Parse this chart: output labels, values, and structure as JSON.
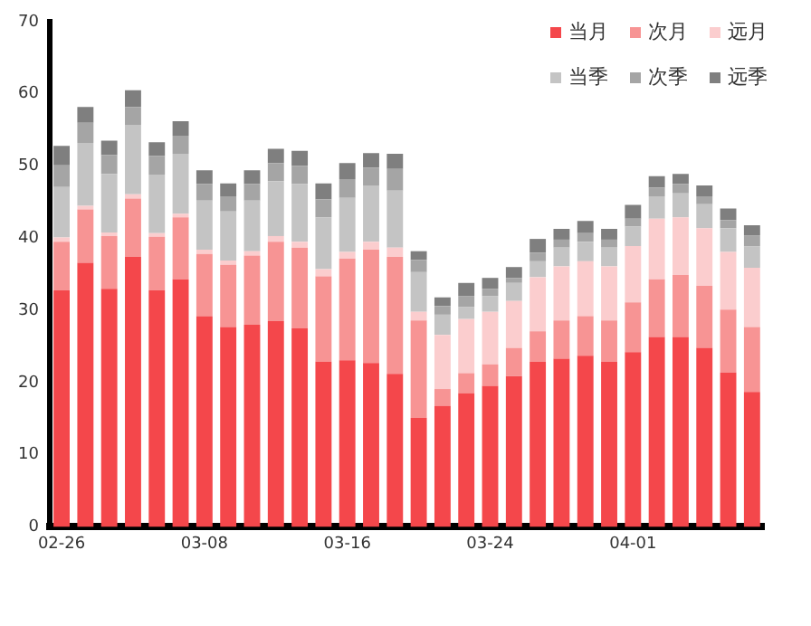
{
  "chart_data": {
    "type": "bar",
    "stacked": true,
    "categories": [
      "02-26",
      null,
      null,
      null,
      null,
      null,
      "03-08",
      null,
      null,
      null,
      null,
      null,
      "03-16",
      null,
      null,
      null,
      null,
      null,
      "03-24",
      null,
      null,
      null,
      null,
      null,
      "04-01",
      null,
      null,
      null,
      null,
      null
    ],
    "series": [
      {
        "name": "当月",
        "color": "#f4474b",
        "values": [
          32.8,
          36.6,
          33.0,
          37.4,
          32.8,
          34.3,
          29.2,
          27.7,
          28.0,
          28.5,
          27.5,
          22.9,
          23.1,
          22.7,
          21.2,
          15.1,
          16.8,
          18.5,
          19.5,
          20.9,
          22.9,
          23.3,
          23.7,
          22.9,
          24.2,
          26.3,
          26.3,
          24.8,
          21.4,
          18.7
        ]
      },
      {
        "name": "次月",
        "color": "#f79494",
        "values": [
          6.7,
          7.4,
          7.3,
          8.1,
          7.4,
          8.6,
          8.6,
          8.6,
          9.6,
          11.0,
          11.2,
          11.8,
          14.1,
          15.7,
          16.2,
          13.5,
          2.3,
          2.8,
          3.0,
          3.9,
          4.2,
          5.3,
          5.5,
          5.7,
          6.9,
          8.0,
          8.6,
          8.6,
          8.7,
          9.0
        ]
      },
      {
        "name": "远月",
        "color": "#fbcdce",
        "values": [
          0.6,
          0.5,
          0.5,
          0.6,
          0.5,
          0.5,
          0.6,
          0.6,
          0.6,
          0.8,
          0.8,
          1.0,
          0.9,
          1.1,
          1.3,
          1.2,
          7.5,
          7.5,
          7.3,
          6.5,
          7.5,
          7.5,
          7.6,
          7.5,
          7.8,
          8.4,
          8.0,
          8.0,
          8.0,
          8.2
        ]
      },
      {
        "name": "当季",
        "color": "#c4c4c4",
        "values": [
          7.0,
          8.7,
          8.1,
          9.6,
          8.1,
          8.3,
          6.8,
          6.8,
          7.0,
          7.6,
          8.0,
          7.2,
          7.5,
          7.8,
          7.9,
          5.5,
          2.8,
          1.7,
          2.2,
          2.5,
          2.2,
          2.6,
          2.7,
          2.6,
          2.7,
          3.1,
          3.3,
          3.3,
          3.3,
          3.0
        ]
      },
      {
        "name": "次季",
        "color": "#a5a5a5",
        "values": [
          3.0,
          2.8,
          2.6,
          2.5,
          2.6,
          2.5,
          2.3,
          2.1,
          2.3,
          2.5,
          2.5,
          2.5,
          2.6,
          2.5,
          3.0,
          1.7,
          1.2,
          1.5,
          1.0,
          0.7,
          1.2,
          1.1,
          1.2,
          1.1,
          1.1,
          1.2,
          1.3,
          1.1,
          1.1,
          1.5
        ]
      },
      {
        "name": "远季",
        "color": "#7f7f7f",
        "values": [
          2.7,
          2.2,
          2.0,
          2.3,
          1.9,
          2.0,
          1.9,
          1.8,
          1.9,
          2.0,
          2.1,
          2.2,
          2.2,
          2.0,
          2.1,
          1.2,
          1.2,
          1.8,
          1.5,
          1.5,
          1.9,
          1.5,
          1.7,
          1.5,
          1.9,
          1.6,
          1.4,
          1.5,
          1.6,
          1.4
        ]
      }
    ],
    "ylim": [
      0,
      70
    ],
    "yticks": [
      0,
      10,
      20,
      30,
      40,
      50,
      60,
      70
    ],
    "grid": false,
    "legend": "top right"
  }
}
